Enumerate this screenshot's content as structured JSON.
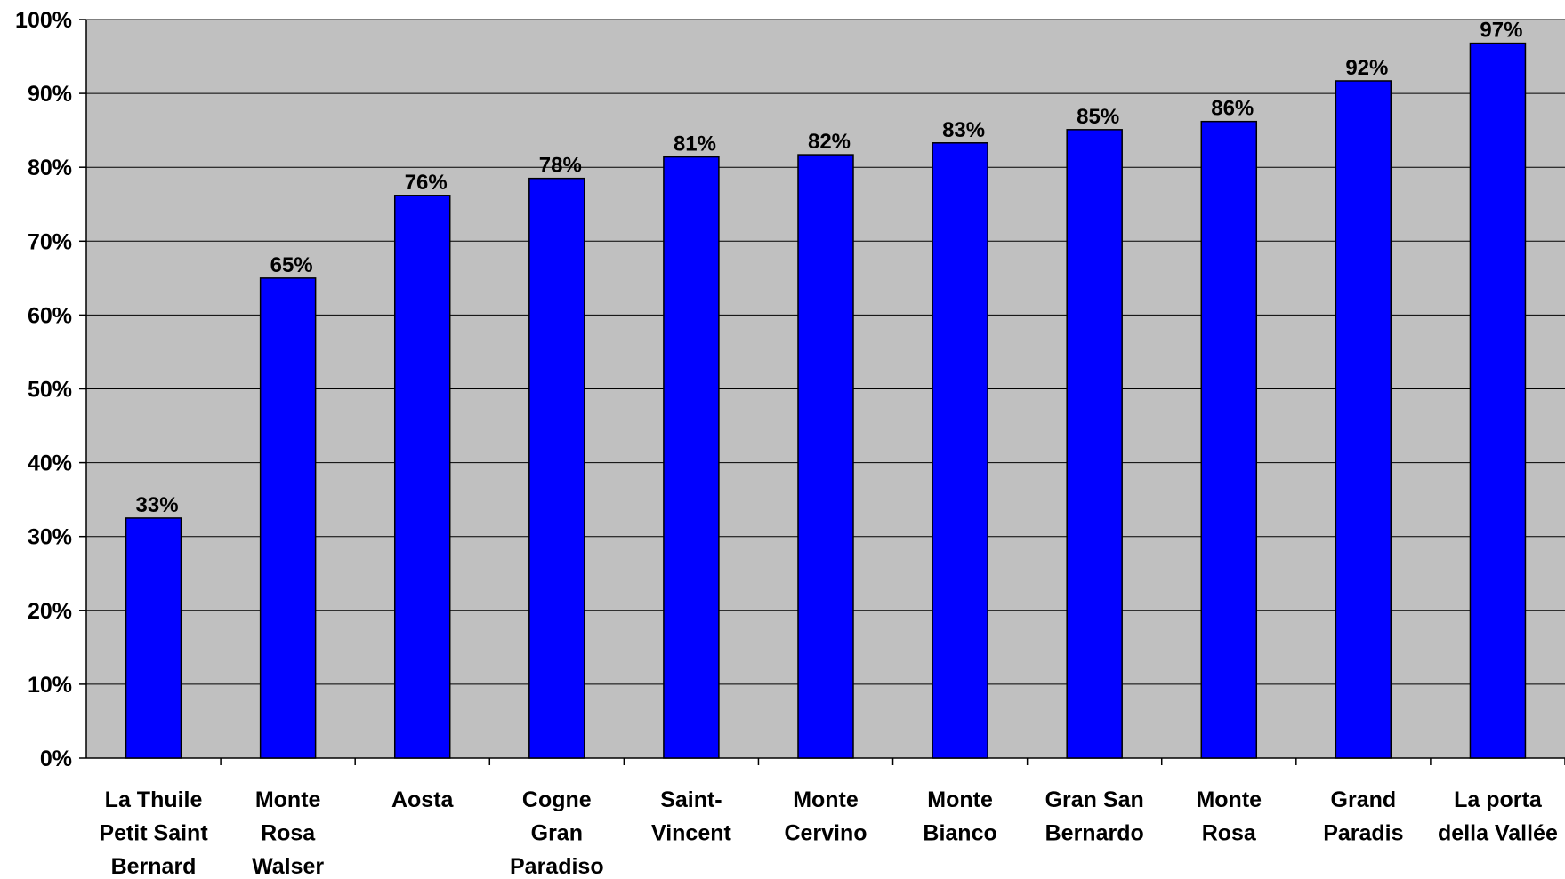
{
  "chart_data": {
    "type": "bar",
    "categories": [
      [
        "La Thuile",
        "Petit Saint",
        "Bernard"
      ],
      [
        "Monte",
        "Rosa",
        "Walser"
      ],
      [
        "Aosta"
      ],
      [
        "Cogne",
        "Gran",
        "Paradiso"
      ],
      [
        "Saint-",
        "Vincent"
      ],
      [
        "Monte",
        "Cervino"
      ],
      [
        "Monte",
        "Bianco"
      ],
      [
        "Gran San",
        "Bernardo"
      ],
      [
        "Monte",
        "Rosa"
      ],
      [
        "Grand",
        "Paradis"
      ],
      [
        "La porta",
        "della Vallée"
      ]
    ],
    "values": [
      32.5,
      65,
      76.2,
      78.5,
      81.4,
      81.7,
      83.3,
      85.1,
      86.2,
      91.7,
      96.8
    ],
    "data_labels": [
      "33%",
      "65%",
      "76%",
      "78%",
      "81%",
      "82%",
      "83%",
      "85%",
      "86%",
      "92%",
      "97%"
    ],
    "y_ticks": [
      "0%",
      "10%",
      "20%",
      "30%",
      "40%",
      "50%",
      "60%",
      "70%",
      "80%",
      "90%",
      "100%"
    ],
    "ylim": [
      0,
      100
    ],
    "title": "",
    "xlabel": "",
    "ylabel": "",
    "grid": true,
    "legend": "none",
    "colors": {
      "bar": "#0000ff",
      "plot_background": "#c0c0c0",
      "gridline": "#000000"
    }
  }
}
